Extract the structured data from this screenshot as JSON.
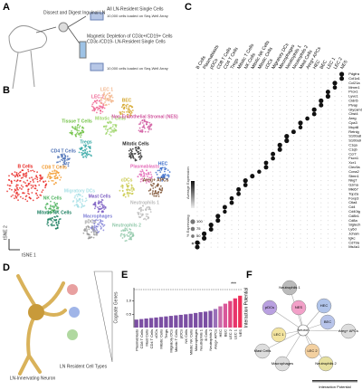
{
  "panels": {
    "a": "A",
    "b": "B",
    "c": "C",
    "d": "D",
    "e": "E",
    "f": "F"
  },
  "panel_a": {
    "step1": "Dissect and Digest Inguinal LN",
    "out1": "All LN-Resident Single Cells",
    "load1": "10,000 cells loaded on Seq-Well Array",
    "step2": "Magnetic Depletion of CD3ε+/CD19+ Cells",
    "out2": "CD3ε-/CD19- LN-Resident Single Cells",
    "load2": "10,000 cells loaded on Seq-Well Array"
  },
  "panel_b": {
    "x_label": "tSNE 1",
    "y_label": "tSNE 2",
    "clusters": [
      {
        "name": "B Cells",
        "color": "#e8231f"
      },
      {
        "name": "CD4 T Cells",
        "color": "#4a6fb5"
      },
      {
        "name": "CD8 T Cells",
        "color": "#f29a2e"
      },
      {
        "name": "Tregs",
        "color": "#2aa3a0"
      },
      {
        "name": "Tissue T Cells",
        "color": "#6cbf3e"
      },
      {
        "name": "Mitotic T Cells",
        "color": "#9fd66c"
      },
      {
        "name": "LEC 2",
        "color": "#ef5f8f"
      },
      {
        "name": "LEC 1",
        "color": "#f2b48a"
      },
      {
        "name": "BEC",
        "color": "#d4a52a"
      },
      {
        "name": "Non-Endothelial Stromal (NES)",
        "color": "#d0559e"
      },
      {
        "name": "Mitotic Cells",
        "color": "#222222"
      },
      {
        "name": "Plasmablasts",
        "color": "#e46ab8"
      },
      {
        "name": "cDCs",
        "color": "#c9c94a"
      },
      {
        "name": "HEC",
        "color": "#3a6bc9"
      },
      {
        "name": "Areg+ APCs",
        "color": "#7a4e2d"
      },
      {
        "name": "Neutrophils 1",
        "color": "#b9b9b9"
      },
      {
        "name": "Neutrophils 2",
        "color": "#8fc7a8"
      },
      {
        "name": "Macrophages",
        "color": "#7e7ed6"
      },
      {
        "name": "Migratory DCs",
        "color": "#a8e0e6"
      },
      {
        "name": "NK Cells",
        "color": "#4db35e"
      },
      {
        "name": "Mitotic NK Cells",
        "color": "#137a5a"
      },
      {
        "name": "Mast Cells",
        "color": "#7b5cc2"
      },
      {
        "name": "pDCs",
        "color": "#999999"
      }
    ]
  },
  "panel_c": {
    "columns": [
      "B Cells",
      "Plasmablasts",
      "pDCs",
      "CD8 T Cells",
      "CD4 T Cells",
      "Tregs",
      "Mitotic T Cells",
      "NK Cells",
      "Mitotic NK Cells",
      "Mitotic Cells",
      "cDCs",
      "Migratory DCs",
      "Macrophages",
      "Neutrophils 1",
      "Neutrophils 2",
      "Mast Cells",
      "Areg+ APCs",
      "HEC",
      "BEC",
      "LEC 1",
      "LEC 2",
      "NES"
    ],
    "genes": [
      {
        "name": "Pdgfra",
        "cluster": 21,
        "pct": 100
      },
      {
        "name": "Col1a1",
        "cluster": 21,
        "pct": 90
      },
      {
        "name": "Ccl21a",
        "cluster": 20,
        "pct": 100
      },
      {
        "name": "Mmrn1",
        "cluster": 20,
        "pct": 80
      },
      {
        "name": "Prox1",
        "cluster": 19,
        "pct": 90
      },
      {
        "name": "Lyve1",
        "cluster": 19,
        "pct": 100
      },
      {
        "name": "Cldn5",
        "cluster": 18,
        "pct": 100
      },
      {
        "name": "Plvap",
        "cluster": 18,
        "pct": 90
      },
      {
        "name": "Glycam1",
        "cluster": 17,
        "pct": 100
      },
      {
        "name": "Chst4",
        "cluster": 17,
        "pct": 85
      },
      {
        "name": "Areg",
        "cluster": 16,
        "pct": 80
      },
      {
        "name": "Cpa3",
        "cluster": 15,
        "pct": 100
      },
      {
        "name": "Mcpt8",
        "cluster": 15,
        "pct": 75
      },
      {
        "name": "Retnlg",
        "cluster": 14,
        "pct": 90
      },
      {
        "name": "S100a8",
        "cluster": 13,
        "pct": 100
      },
      {
        "name": "S100a9",
        "cluster": 13,
        "pct": 100
      },
      {
        "name": "C1qa",
        "cluster": 12,
        "pct": 100
      },
      {
        "name": "C1qb",
        "cluster": 12,
        "pct": 95
      },
      {
        "name": "Ccr7",
        "cluster": 11,
        "pct": 90
      },
      {
        "name": "Fscn1",
        "cluster": 11,
        "pct": 80
      },
      {
        "name": "Xcr1",
        "cluster": 10,
        "pct": 85
      },
      {
        "name": "Clec9a",
        "cluster": 10,
        "pct": 90
      },
      {
        "name": "Ccna2",
        "cluster": 9,
        "pct": 75
      },
      {
        "name": "Stmn1",
        "cluster": 8,
        "pct": 95
      },
      {
        "name": "Nkg7",
        "cluster": 7,
        "pct": 100
      },
      {
        "name": "Gzma",
        "cluster": 7,
        "pct": 85
      },
      {
        "name": "Mki67",
        "cluster": 6,
        "pct": 90
      },
      {
        "name": "Top2a",
        "cluster": 6,
        "pct": 85
      },
      {
        "name": "Foxp3",
        "cluster": 5,
        "pct": 80
      },
      {
        "name": "Ctla4",
        "cluster": 5,
        "pct": 85
      },
      {
        "name": "Cd4",
        "cluster": 4,
        "pct": 90
      },
      {
        "name": "Cd40lg",
        "cluster": 4,
        "pct": 70
      },
      {
        "name": "Cd8b1",
        "cluster": 3,
        "pct": 100
      },
      {
        "name": "Cd8a",
        "cluster": 3,
        "pct": 95
      },
      {
        "name": "Siglech",
        "cluster": 2,
        "pct": 100
      },
      {
        "name": "Ly6d",
        "cluster": 2,
        "pct": 90
      },
      {
        "name": "Jchain",
        "cluster": 1,
        "pct": 100
      },
      {
        "name": "Igkc",
        "cluster": 1,
        "pct": 100
      },
      {
        "name": "Cd79a",
        "cluster": 0,
        "pct": 100
      },
      {
        "name": "Ms4a1",
        "cluster": 0,
        "pct": 95
      }
    ],
    "legend_expr": "Average Expression",
    "legend_pct": "% Expressing",
    "pct_levels": [
      100,
      75,
      50,
      25
    ]
  },
  "panel_d": {
    "neuron": "LN-Innervating Neuron",
    "cells": "LN Resident Cell Types",
    "genes": "Cognate Genes"
  },
  "panel_e": {
    "type": "bar",
    "y_label": "Interaction Potential",
    "ylim": [
      0,
      1.5
    ],
    "yticks": [
      {
        "value": 0.5,
        "label": "0.5"
      },
      {
        "value": 1,
        "label": "1.0"
      }
    ],
    "categories": [
      "Plasmablasts",
      "CD8 T Cells",
      "Mast Cells",
      "CD4 T Cells",
      "cDCs",
      "Mitotic Cells",
      "Tregs",
      "Migratory DCs",
      "Mitotic T Cells",
      "pDCs",
      "NK Cells",
      "Mitotic NK Cells",
      "Macrophages",
      "Neutrophils 1",
      "B Cells",
      "Neutrophils 2",
      "Areg+ APCs",
      "HEC",
      "BEC",
      "LEC 2",
      "LEC 1",
      "NES"
    ],
    "values": [
      0.3,
      0.32,
      0.34,
      0.36,
      0.38,
      0.4,
      0.42,
      0.44,
      0.46,
      0.48,
      0.5,
      0.52,
      0.55,
      0.58,
      0.6,
      0.63,
      0.7,
      0.8,
      0.9,
      1.0,
      1.1,
      1.2
    ],
    "colors": [
      "#7b4ea3",
      "#7b4ea3",
      "#7b4ea3",
      "#7b4ea3",
      "#7b4ea3",
      "#7b4ea3",
      "#7b4ea3",
      "#7b4ea3",
      "#7b4ea3",
      "#7b4ea3",
      "#7b4ea3",
      "#7b4ea3",
      "#7b4ea3",
      "#7b4ea3",
      "#7b4ea3",
      "#7b4ea3",
      "#9a6fb8",
      "#c86aa8",
      "#d9579a",
      "#e0457f",
      "#e8346b",
      "#ef2f57"
    ],
    "stars": "***"
  },
  "panel_f": {
    "center": "Neuron",
    "nodes": [
      "Neutrophils 1",
      "pDCs",
      "NES",
      "HEC",
      "BEC",
      "Areg+ APCs",
      "LEC 1",
      "LEC 2",
      "Neutrophils 2",
      "Macrophages",
      "Mast Cells"
    ],
    "legend": "Interaction Potential"
  }
}
